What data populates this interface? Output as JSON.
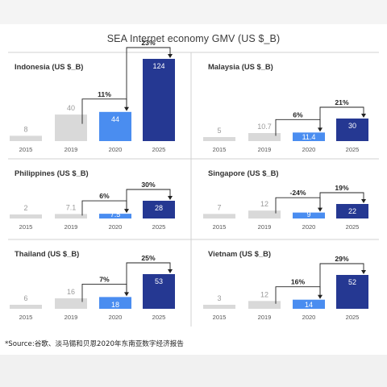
{
  "title": "SEA Internet economy GMV (US $_B)",
  "source": "*Source:谷歌、淡马锡和贝恩2020年东南亚数字经济报告",
  "colors": {
    "bar_gray": "#d9d9d9",
    "bar_2020": "#4a8df0",
    "bar_2025": "#253892",
    "text_gray": "#9a9a9a",
    "text_dark": "#333333",
    "divider": "#d0d0d0"
  },
  "chart_data": [
    {
      "type": "bar",
      "title": "Indonesia (US $_B)",
      "categories": [
        "2015",
        "2019",
        "2020",
        "2025"
      ],
      "values": [
        8,
        40,
        44,
        124
      ],
      "value_labels": [
        "8",
        "40",
        "44",
        "124"
      ],
      "growth_labels": [
        "11%",
        "23%"
      ]
    },
    {
      "type": "bar",
      "title": "Malaysia (US $_B)",
      "categories": [
        "2015",
        "2019",
        "2020",
        "2025"
      ],
      "values": [
        5,
        10.7,
        11.4,
        30
      ],
      "value_labels": [
        "5",
        "10.7",
        "11.4",
        "30"
      ],
      "growth_labels": [
        "6%",
        "21%"
      ]
    },
    {
      "type": "bar",
      "title": "Philippines (US $_B)",
      "categories": [
        "2015",
        "2019",
        "2020",
        "2025"
      ],
      "values": [
        2,
        7.1,
        7.5,
        28
      ],
      "value_labels": [
        "2",
        "7.1",
        "7.5",
        "28"
      ],
      "growth_labels": [
        "6%",
        "30%"
      ]
    },
    {
      "type": "bar",
      "title": "Singapore (US $_B)",
      "categories": [
        "2015",
        "2019",
        "2020",
        "2025"
      ],
      "values": [
        7,
        12,
        9,
        22
      ],
      "value_labels": [
        "7",
        "12",
        "9",
        "22"
      ],
      "growth_labels": [
        "-24%",
        "19%"
      ]
    },
    {
      "type": "bar",
      "title": "Thailand (US $_B)",
      "categories": [
        "2015",
        "2019",
        "2020",
        "2025"
      ],
      "values": [
        6,
        16,
        18,
        53
      ],
      "value_labels": [
        "6",
        "16",
        "18",
        "53"
      ],
      "growth_labels": [
        "7%",
        "25%"
      ]
    },
    {
      "type": "bar",
      "title": "Vietnam (US $_B)",
      "categories": [
        "2015",
        "2019",
        "2020",
        "2025"
      ],
      "values": [
        3,
        12,
        14,
        52
      ],
      "value_labels": [
        "3",
        "12",
        "14",
        "52"
      ],
      "growth_labels": [
        "16%",
        "29%"
      ]
    }
  ]
}
